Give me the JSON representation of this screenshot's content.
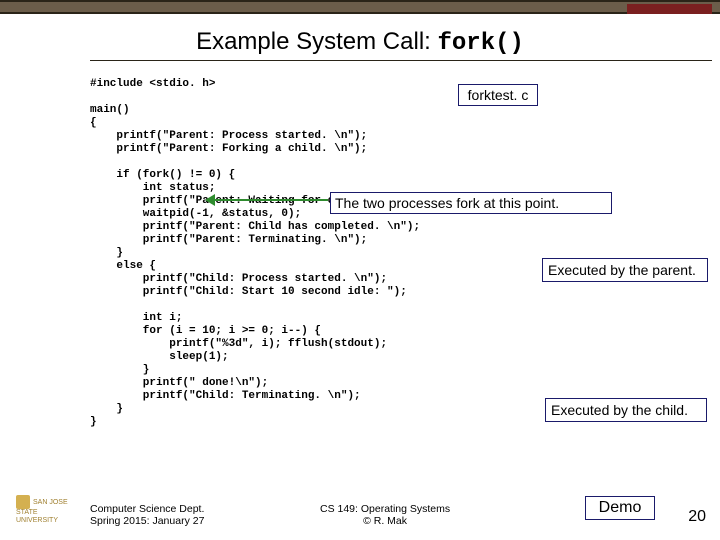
{
  "title": {
    "text": "Example System Call: ",
    "code": "fork()"
  },
  "filename": "forktest. c",
  "code": "#include <stdio. h>\n\nmain()\n{\n    printf(\"Parent: Process started. \\n\");\n    printf(\"Parent: Forking a child. \\n\");\n\n    if (fork() != 0) {\n        int status;\n        printf(\"Parent: Waiting for child to complete. \\n\");\n        waitpid(-1, &status, 0);\n        printf(\"Parent: Child has completed. \\n\");\n        printf(\"Parent: Terminating. \\n\");\n    }\n    else {\n        printf(\"Child: Process started. \\n\");\n        printf(\"Child: Start 10 second idle: \");\n\n        int i;\n        for (i = 10; i >= 0; i--) {\n            printf(\"%3d\", i); fflush(stdout);\n            sleep(1);\n        }\n        printf(\" done!\\n\");\n        printf(\"Child: Terminating. \\n\");\n    }\n}",
  "annotations": {
    "fork_point": "The two processes fork at this point.",
    "parent": "Executed by the parent.",
    "child": "Executed by the child.",
    "demo": "Demo"
  },
  "footer": {
    "left_line1": "Computer Science Dept.",
    "left_line2": "Spring 2015: January 27",
    "center_line1": "CS 149: Operating Systems",
    "center_line2": "© R. Mak"
  },
  "page_number": "20",
  "logo": "SAN JOSE STATE\nUNIVERSITY",
  "colors": {
    "header_bar": "#6b5d4a",
    "header_border": "#2a2418",
    "accent": "#7a2020",
    "box_border": "#1a1a6a",
    "arrow": "#2e8b2e",
    "logo": "#a08030"
  }
}
